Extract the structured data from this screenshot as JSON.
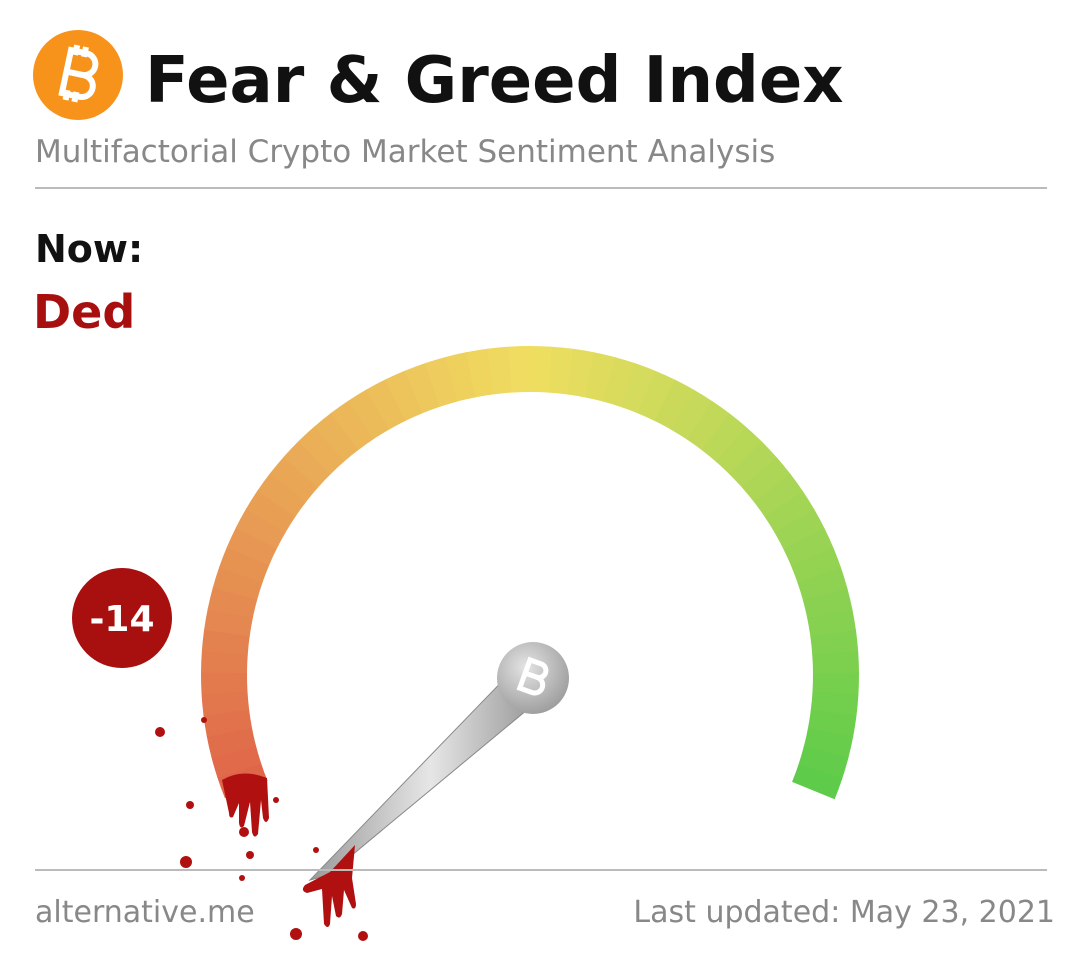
{
  "header": {
    "title": "Fear & Greed Index",
    "subtitle": "Multifactorial Crypto Market Sentiment Analysis"
  },
  "status": {
    "label": "Now:",
    "value_text": "Ded"
  },
  "gauge": {
    "value": "-14"
  },
  "footer": {
    "source": "alternative.me",
    "updated": "Last updated: May 23, 2021"
  }
}
